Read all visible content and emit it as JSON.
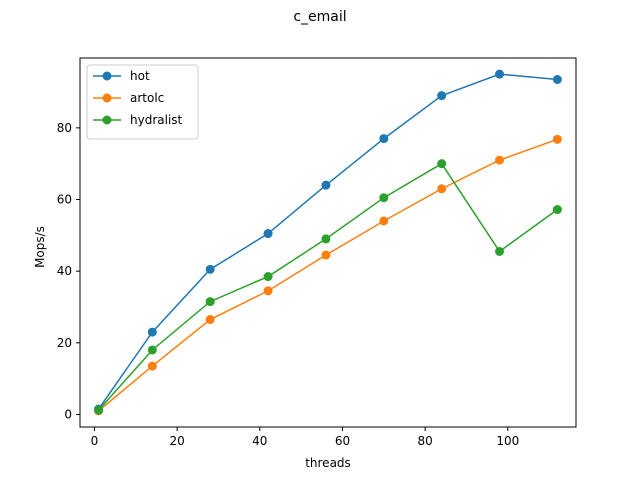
{
  "chart_data": {
    "type": "line",
    "title": "c_email",
    "xlabel": "threads",
    "ylabel": "Mops/s",
    "xlim": [
      -3.5,
      116.5
    ],
    "ylim": [
      -3.5,
      99.5
    ],
    "xticks": [
      0,
      20,
      40,
      60,
      80,
      100
    ],
    "yticks": [
      0,
      20,
      40,
      60,
      80
    ],
    "grid": false,
    "legend_position": "top-left",
    "x": [
      1,
      14,
      28,
      42,
      56,
      70,
      84,
      98,
      112
    ],
    "series": [
      {
        "name": "hot",
        "color": "#1f77b4",
        "values": [
          1.5,
          23.0,
          40.5,
          50.5,
          64.0,
          77.0,
          89.0,
          95.0,
          93.5
        ]
      },
      {
        "name": "artolc",
        "color": "#ff7f0e",
        "values": [
          1.0,
          13.5,
          26.5,
          34.5,
          44.5,
          54.0,
          63.0,
          71.0,
          76.8
        ]
      },
      {
        "name": "hydralist",
        "color": "#2ca02c",
        "values": [
          1.2,
          18.0,
          31.5,
          38.5,
          49.0,
          60.5,
          70.0,
          45.5,
          57.2
        ]
      }
    ]
  }
}
